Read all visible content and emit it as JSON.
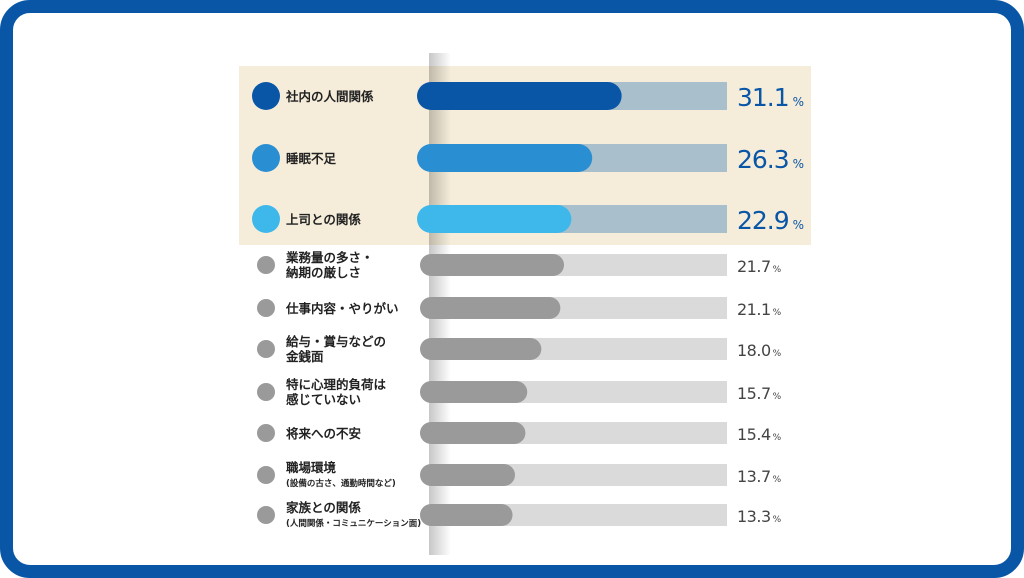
{
  "chart_data": {
    "type": "bar",
    "orientation": "horizontal",
    "unit": "%",
    "categories": [
      {
        "lines": [
          "社内の人間関係"
        ],
        "sub": "",
        "value": 31.1,
        "value_label": "31.1",
        "highlight": true,
        "color": "#0a56a6"
      },
      {
        "lines": [
          "睡眠不足"
        ],
        "sub": "",
        "value": 26.3,
        "value_label": "26.3",
        "highlight": true,
        "color": "#2a8ed2"
      },
      {
        "lines": [
          "上司との関係"
        ],
        "sub": "",
        "value": 22.9,
        "value_label": "22.9",
        "highlight": true,
        "color": "#3eb8ea"
      },
      {
        "lines": [
          "業務量の多さ・",
          "納期の厳しさ"
        ],
        "sub": "",
        "value": 21.7,
        "value_label": "21.7",
        "highlight": false,
        "color": "#9a9a9a"
      },
      {
        "lines": [
          "仕事内容・やりがい"
        ],
        "sub": "",
        "value": 21.1,
        "value_label": "21.1",
        "highlight": false,
        "color": "#9a9a9a"
      },
      {
        "lines": [
          "給与・賞与などの",
          "金銭面"
        ],
        "sub": "",
        "value": 18.0,
        "value_label": "18.0",
        "highlight": false,
        "color": "#9a9a9a"
      },
      {
        "lines": [
          "特に心理的負荷は",
          "感じていない"
        ],
        "sub": "",
        "value": 15.7,
        "value_label": "15.7",
        "highlight": false,
        "color": "#9a9a9a"
      },
      {
        "lines": [
          "将来への不安"
        ],
        "sub": "",
        "value": 15.4,
        "value_label": "15.4",
        "highlight": false,
        "color": "#9a9a9a"
      },
      {
        "lines": [
          "職場環境"
        ],
        "sub": "(設備の古さ、通勤時間など)",
        "value": 13.7,
        "value_label": "13.7",
        "highlight": false,
        "color": "#9a9a9a"
      },
      {
        "lines": [
          "家族との関係"
        ],
        "sub": "(人間関係・コミュニケーション面)",
        "value": 13.3,
        "value_label": "13.3",
        "highlight": false,
        "color": "#9a9a9a"
      }
    ],
    "colors": {
      "highlight_band": "#f5edda",
      "highlight_track": "#a9bfcc",
      "plain_track": "#dadada",
      "highlight_value_text": "#0a56a6",
      "plain_value_text": "#444444",
      "label_text": "#222222",
      "frame": "#0a56a6"
    }
  }
}
